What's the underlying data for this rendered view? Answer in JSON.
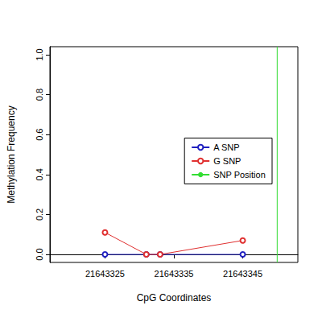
{
  "chart_data": {
    "type": "line",
    "x_label": "CpG Coordinates",
    "y_label": "Methylation Frequency",
    "x": [
      21643325,
      21643331,
      21643333,
      21643345
    ],
    "series": [
      {
        "name": "A SNP",
        "color": "#2020c0",
        "values": [
          0,
          0,
          0,
          0
        ],
        "marker": "open circle"
      },
      {
        "name": "G SNP",
        "color": "#e03030",
        "values": [
          0.11,
          0,
          0,
          0.07
        ],
        "marker": "open circle"
      },
      {
        "name": "SNP Position",
        "color": "#33dd33",
        "type": "vline",
        "x_position": 21643350
      }
    ],
    "xlim": [
      21643317,
      21643353
    ],
    "xticks": [
      21643325,
      21643335,
      21643345
    ],
    "ylim": [
      -0.04,
      1.04
    ],
    "yticks": [
      {
        "value": 0,
        "label": "0.0"
      },
      0.2,
      0.4,
      0.6,
      0.8,
      {
        "value": 1,
        "label": "1.0"
      }
    ],
    "grid": false,
    "legend": "right"
  }
}
